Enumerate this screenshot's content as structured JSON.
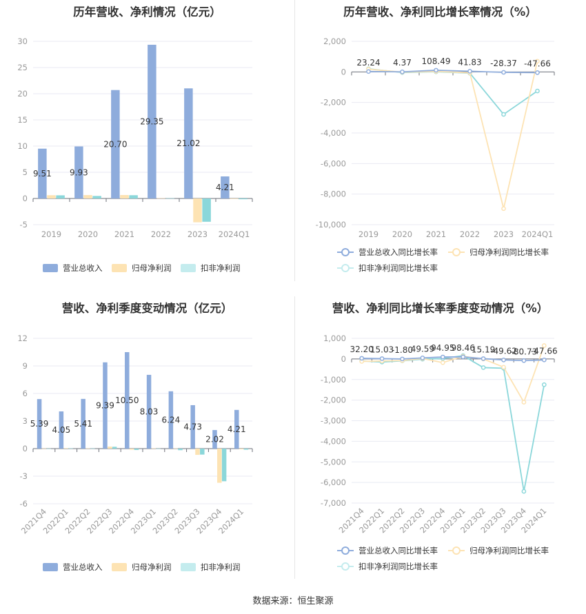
{
  "colors": {
    "revenue": "#8eacdc",
    "netProfit": "#fde3b3",
    "deductNetProfit": "#8bd7da",
    "revenueYoY": "#8eacdc",
    "netProfitYoY": "#fde3b3",
    "deductNetProfitYoY": "#8bd7da",
    "axisText": "#999999",
    "grid": "#e8eaf3",
    "labelText": "#333333"
  },
  "footer": "数据来源：恒生聚源",
  "chart_data": [
    {
      "id": "annual-amount",
      "type": "bar",
      "title": "历年营收、净利情况（亿元）",
      "categories": [
        "2019",
        "2020",
        "2021",
        "2022",
        "2023",
        "2024Q1"
      ],
      "ylim": [
        -5,
        30
      ],
      "yticks": [
        -5,
        0,
        5,
        10,
        15,
        20,
        25,
        30
      ],
      "grid": true,
      "legend_position": "bottom",
      "series": [
        {
          "name": "营业总收入",
          "color_key": "revenue",
          "values": [
            9.51,
            9.93,
            20.7,
            29.35,
            21.02,
            4.21
          ],
          "labels": [
            "9.51",
            "9.93",
            "20.70",
            "29.35",
            "21.02",
            "4.21"
          ]
        },
        {
          "name": "归母净利润",
          "color_key": "netProfit",
          "values": [
            0.62,
            0.65,
            0.66,
            0.05,
            -4.55,
            -0.09
          ]
        },
        {
          "name": "扣非净利润",
          "color_key": "deductNetProfit",
          "values": [
            0.6,
            0.48,
            0.62,
            0.04,
            -4.45,
            -0.15
          ]
        }
      ]
    },
    {
      "id": "annual-yoy",
      "type": "line",
      "title": "历年营收、净利同比增长率情况（%）",
      "categories": [
        "2019",
        "2020",
        "2021",
        "2022",
        "2023",
        "2024Q1"
      ],
      "ylim": [
        -10000,
        2000
      ],
      "yticks": [
        -10000,
        -8000,
        -6000,
        -4000,
        -2000,
        0,
        2000
      ],
      "ytick_labels": [
        "-10,000",
        "-8,000",
        "-6,000",
        "-4,000",
        "-2,000",
        "0",
        "2,000"
      ],
      "grid": true,
      "legend_position": "bottom",
      "series": [
        {
          "name": "营业总收入同比增长率",
          "color_key": "revenueYoY",
          "values": [
            23.24,
            4.37,
            108.49,
            41.83,
            -28.37,
            -47.66
          ],
          "labels": [
            "23.24",
            "4.37",
            "108.49",
            "41.83",
            "-28.37",
            "-47.66"
          ]
        },
        {
          "name": "归母净利润同比增长率",
          "color_key": "netProfitYoY",
          "values": [
            180,
            -20,
            30,
            -60,
            -8950,
            700
          ]
        },
        {
          "name": "扣非净利润同比增长率",
          "color_key": "deductNetProfitYoY",
          "values": [
            200,
            -40,
            10,
            -80,
            -2780,
            -1250
          ]
        }
      ]
    },
    {
      "id": "quarterly-amount",
      "type": "bar",
      "title": "营收、净利季度变动情况（亿元）",
      "categories": [
        "2021Q4",
        "2022Q1",
        "2022Q2",
        "2022Q3",
        "2022Q4",
        "2023Q1",
        "2023Q2",
        "2023Q3",
        "2023Q4",
        "2024Q1"
      ],
      "ylim": [
        -6,
        12
      ],
      "yticks": [
        -6,
        -3,
        0,
        3,
        6,
        9,
        12
      ],
      "grid": true,
      "legend_position": "bottom",
      "series": [
        {
          "name": "营业总收入",
          "color_key": "revenue",
          "values": [
            5.39,
            4.05,
            5.41,
            9.39,
            10.5,
            8.03,
            6.24,
            4.73,
            2.02,
            4.21
          ],
          "labels": [
            "5.39",
            "4.05",
            "5.41",
            "9.39",
            "10.50",
            "8.03",
            "6.24",
            "4.73",
            "2.02",
            "4.21"
          ]
        },
        {
          "name": "归母净利润",
          "color_key": "netProfit",
          "values": [
            0.02,
            0.05,
            0.03,
            0.22,
            -0.12,
            0.03,
            0.03,
            -0.68,
            -3.72,
            -0.08
          ]
        },
        {
          "name": "扣非净利润",
          "color_key": "deductNetProfit",
          "values": [
            0.01,
            0.03,
            0.02,
            0.2,
            -0.15,
            0.01,
            -0.17,
            -0.65,
            -3.55,
            -0.12
          ]
        }
      ]
    },
    {
      "id": "quarterly-yoy",
      "type": "line",
      "title": "营收、净利同比增长率季度变动情况（%）",
      "categories": [
        "2021Q4",
        "2022Q1",
        "2022Q2",
        "2022Q3",
        "2022Q4",
        "2023Q1",
        "2023Q2",
        "2023Q3",
        "2023Q4",
        "2024Q1"
      ],
      "ylim": [
        -7000,
        1000
      ],
      "yticks": [
        -7000,
        -6000,
        -5000,
        -4000,
        -3000,
        -2000,
        -1000,
        0,
        1000
      ],
      "ytick_labels": [
        "-7,000",
        "-6,000",
        "-5,000",
        "-4,000",
        "-3,000",
        "-2,000",
        "-1,000",
        "0",
        "1,000"
      ],
      "grid": true,
      "legend_position": "bottom",
      "series": [
        {
          "name": "营业总收入同比增长率",
          "color_key": "revenueYoY",
          "values": [
            32.2,
            15.03,
            -1.8,
            49.59,
            94.95,
            98.46,
            15.19,
            -49.62,
            -80.73,
            -47.66
          ],
          "labels": [
            "32.20",
            "15.03",
            "-1.80",
            "49.59",
            "94.95",
            "98.46",
            "15.19",
            "-49.62",
            "-80.73",
            "-47.66"
          ]
        },
        {
          "name": "归母净利润同比增长率",
          "color_key": "netProfitYoY",
          "values": [
            -120,
            -100,
            -80,
            20,
            -180,
            130,
            0,
            -400,
            -2100,
            650
          ]
        },
        {
          "name": "扣非净利润同比增长率",
          "color_key": "deductNetProfitYoY",
          "values": [
            -100,
            -150,
            -90,
            -10,
            20,
            160,
            -420,
            -450,
            -6430,
            -1250
          ]
        }
      ]
    }
  ]
}
